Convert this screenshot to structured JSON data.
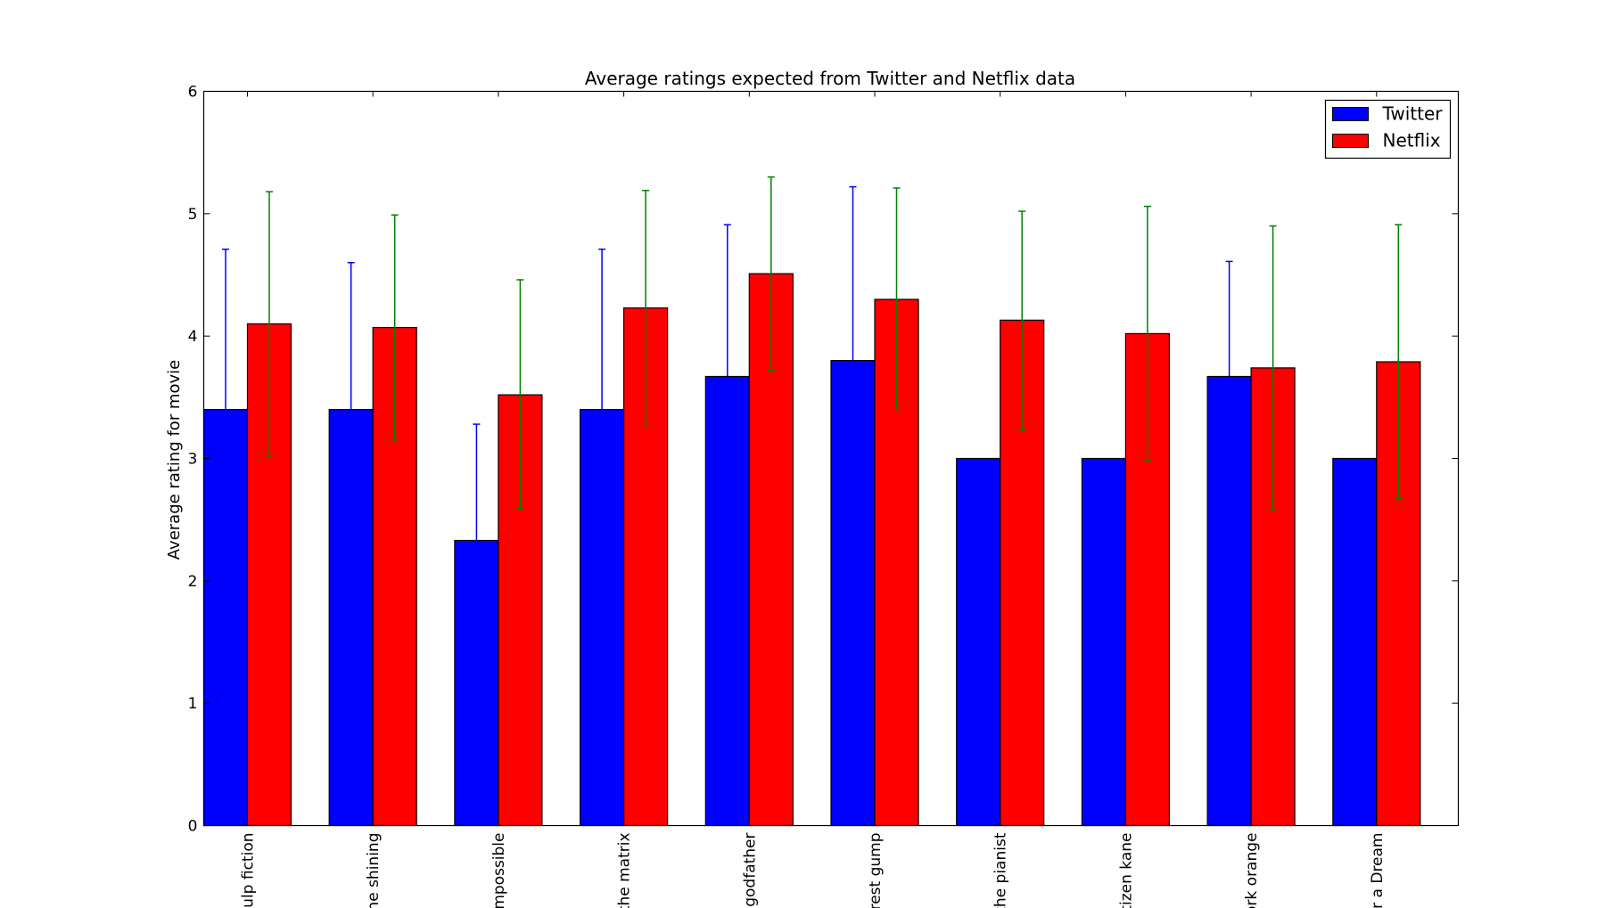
{
  "chart_data": {
    "type": "bar",
    "title": "Average ratings expected from Twitter and Netflix data",
    "xlabel": "",
    "ylabel": "Average rating for movie",
    "ylim": [
      0,
      6
    ],
    "yticks": [
      "0",
      "1",
      "2",
      "3",
      "4",
      "5",
      "6"
    ],
    "grid": false,
    "legend_position": "top-right",
    "categories": [
      "pulp fiction",
      "the shining",
      "impossible",
      "the matrix",
      "e godfather",
      "orrest gump",
      "the pianist",
      "citizen kane",
      "work orange",
      "for a Dream"
    ],
    "series": [
      {
        "name": "Twitter",
        "color": "#0000ff",
        "error_color": "#0000ff",
        "values": [
          3.4,
          3.4,
          2.33,
          3.4,
          3.67,
          3.8,
          3.0,
          3.0,
          3.67,
          3.0
        ],
        "error_upper": [
          4.71,
          4.6,
          3.28,
          4.71,
          4.91,
          5.22,
          null,
          null,
          4.61,
          null
        ]
      },
      {
        "name": "Netflix",
        "color": "#ff0000",
        "error_color": "#008000",
        "values": [
          4.1,
          4.07,
          3.52,
          4.23,
          4.51,
          4.3,
          4.13,
          4.02,
          3.74,
          3.79
        ],
        "error_lower": [
          3.01,
          3.14,
          2.59,
          3.27,
          3.72,
          3.4,
          3.23,
          2.98,
          2.58,
          2.67
        ],
        "error_upper": [
          5.18,
          4.99,
          4.46,
          5.19,
          5.3,
          5.21,
          5.02,
          5.06,
          4.9,
          4.91
        ]
      }
    ]
  }
}
